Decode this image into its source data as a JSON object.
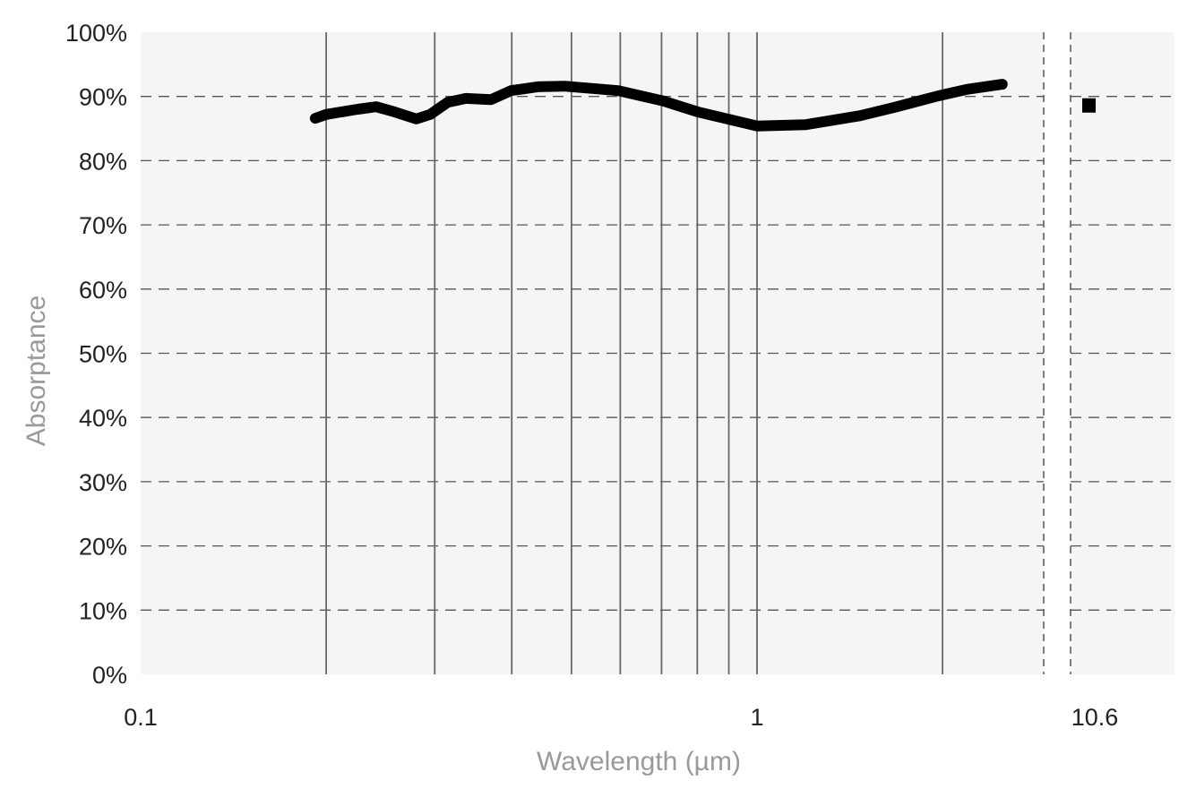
{
  "chart_data": {
    "type": "line",
    "xlabel": "Wavelength (µm)",
    "ylabel": "Absorptance",
    "x_scale": "log",
    "x_axis_break": true,
    "xlim": [
      0.1,
      3.3
    ],
    "ylim": [
      0,
      100
    ],
    "x_ticks": [
      {
        "value": 0.1,
        "label": "0.1"
      },
      {
        "value": 1,
        "label": "1"
      },
      {
        "value": 10.6,
        "label": "10.6"
      }
    ],
    "y_ticks": [
      "0%",
      "10%",
      "20%",
      "30%",
      "40%",
      "50%",
      "60%",
      "70%",
      "80%",
      "90%",
      "100%"
    ],
    "vertical_gridlines": [
      0.2,
      0.3,
      0.4,
      0.5,
      0.6,
      0.7,
      0.8,
      0.9,
      1,
      2
    ],
    "horizontal_grid": "dashed",
    "background": "#f5f5f5",
    "line_color": "#000000",
    "series": [
      {
        "x": [
          0.192,
          0.2,
          0.225,
          0.241,
          0.258,
          0.28,
          0.295,
          0.315,
          0.337,
          0.37,
          0.399,
          0.441,
          0.487,
          0.595,
          0.704,
          0.801,
          1.0,
          1.2,
          1.47,
          1.67,
          1.97,
          2.19,
          2.5
        ],
        "y": [
          86.6,
          87.2,
          88.0,
          88.4,
          87.6,
          86.5,
          87.2,
          89.1,
          89.7,
          89.5,
          90.9,
          91.5,
          91.6,
          90.9,
          89.3,
          87.6,
          85.4,
          85.6,
          87.0,
          88.3,
          90.1,
          91.1,
          91.9
        ]
      },
      {
        "x": [
          10.6
        ],
        "y": [
          88.6
        ],
        "marker": "square"
      }
    ]
  }
}
